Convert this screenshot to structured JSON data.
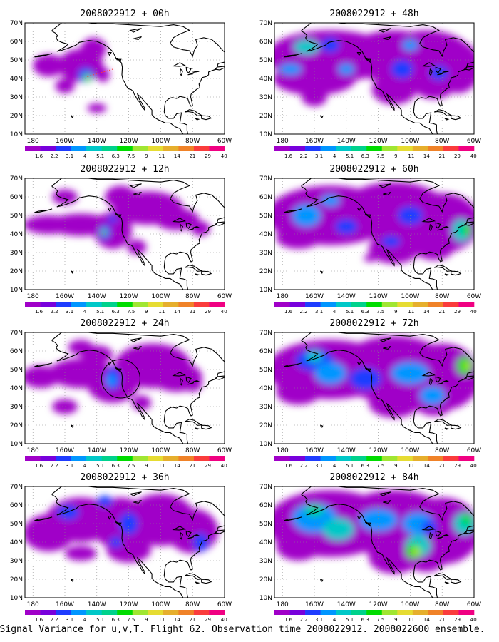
{
  "caption": "Signal Variance for u,v,T. Flight 62. Observation time 2008022912. 2008022600 ensemble.",
  "lat_labels": [
    "70N",
    "60N",
    "50N",
    "40N",
    "30N",
    "20N",
    "10N"
  ],
  "lon_labels": [
    "180",
    "160W",
    "140W",
    "120W",
    "100W",
    "80W",
    "60W"
  ],
  "colorbar": {
    "labels": [
      "1.6",
      "2.2",
      "3.1",
      "4",
      "5.1",
      "6.3",
      "7.5",
      "9",
      "11",
      "14",
      "21",
      "29",
      "40"
    ],
    "colors": [
      "#a000c8",
      "#7800dc",
      "#1e3cff",
      "#0096ff",
      "#00c8c8",
      "#00d28c",
      "#00dc00",
      "#a0e632",
      "#e6dc32",
      "#e6af2d",
      "#f08228",
      "#fa3c3c",
      "#f00082"
    ]
  },
  "panels": [
    {
      "title": "2008022912 + 00h"
    },
    {
      "title": "2008022912 + 48h"
    },
    {
      "title": "2008022912 + 12h"
    },
    {
      "title": "2008022912 + 60h"
    },
    {
      "title": "2008022912 + 24h"
    },
    {
      "title": "2008022912 + 72h"
    },
    {
      "title": "2008022912 + 36h"
    },
    {
      "title": "2008022912 + 84h"
    }
  ]
}
